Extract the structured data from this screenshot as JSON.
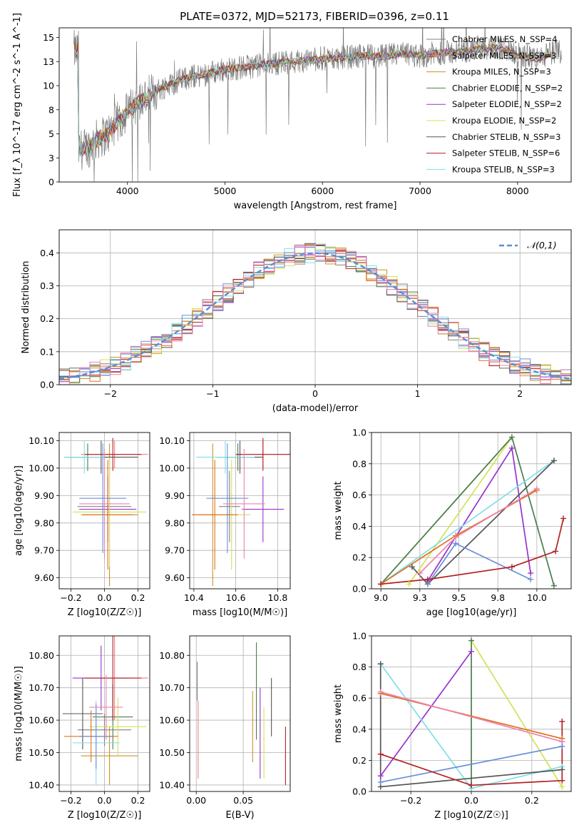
{
  "figure": {
    "title": "PLATE=0372, MJD=52173, FIBERID=0396, z=0.11"
  },
  "colors": [
    "#808080",
    "#f08080",
    "#c8961e",
    "#4a7c4e",
    "#9932cc",
    "#d4e157",
    "#555555",
    "#b22222",
    "#80deea",
    "#e07020",
    "#6a8fd8",
    "#ee82b0"
  ],
  "models": [
    {
      "legend": "Chabrier MILES, N_SSP=4",
      "color": "#808080"
    },
    {
      "legend": "Salpeter MILES, N_SSP=3",
      "color": "#f08080"
    },
    {
      "legend": "Kroupa MILES, N_SSP=3",
      "color": "#c8961e"
    },
    {
      "legend": "Chabrier ELODIE, N_SSP=2",
      "color": "#4a7c4e"
    },
    {
      "legend": "Salpeter ELODIE, N_SSP=2",
      "color": "#9932cc"
    },
    {
      "legend": "Kroupa ELODIE, N_SSP=2",
      "color": "#d4e157"
    },
    {
      "legend": "Chabrier STELIB, N_SSP=3",
      "color": "#555555"
    },
    {
      "legend": "Salpeter STELIB, N_SSP=6",
      "color": "#b22222"
    },
    {
      "legend": "Kroupa STELIB, N_SSP=3",
      "color": "#80deea"
    }
  ],
  "chart_data": [
    {
      "type": "line",
      "id": "spectrum",
      "xlabel": "wavelength [Angstrom, rest frame]",
      "ylabel": "Flux [f_λ 10^-17 erg cm^-2 s^-1 A^-1]",
      "xlim": [
        3300,
        8550
      ],
      "ylim": [
        0,
        16
      ],
      "xticks": [
        4000,
        5000,
        6000,
        7000,
        8000
      ],
      "yticks": [
        0.0,
        2.5,
        5.0,
        7.5,
        10.0,
        12.5,
        15.0
      ],
      "grid": false,
      "legend_position": "right",
      "continuum": {
        "x": [
          3500,
          3600,
          3700,
          3800,
          3900,
          4000,
          4100,
          4200,
          4300,
          4400,
          4500,
          4600,
          4800,
          5000,
          5200,
          5400,
          5600,
          5800,
          6000,
          6200,
          6400,
          6600,
          6800,
          7000,
          7200,
          7400,
          7600,
          7800,
          8000,
          8200,
          8400
        ],
        "y": [
          3.3,
          3.6,
          4.5,
          5.0,
          6.2,
          7.3,
          8.2,
          8.8,
          9.5,
          10.0,
          10.4,
          10.8,
          11.2,
          11.7,
          11.9,
          12.2,
          12.4,
          12.6,
          12.8,
          12.9,
          13.1,
          13.0,
          13.3,
          13.1,
          13.4,
          13.5,
          13.8,
          14.0,
          13.2,
          12.8,
          13.6
        ]
      }
    },
    {
      "type": "line",
      "id": "residuals",
      "xlabel": "(data-model)/error",
      "ylabel": "Normed distribution",
      "xlim": [
        -2.5,
        2.5
      ],
      "ylim": [
        0,
        0.47
      ],
      "xticks": [
        -2,
        -1,
        0,
        1,
        2
      ],
      "yticks": [
        0.0,
        0.1,
        0.2,
        0.3,
        0.4
      ],
      "grid": true,
      "legend_position": "top-right",
      "legend": "𝒩(0,1)",
      "series": [
        {
          "name": "𝒩(0,1)",
          "mu": 0,
          "sigma": 1,
          "style": "dashed"
        }
      ]
    },
    {
      "type": "scatter",
      "id": "z_age",
      "xlabel": "Z [log10(Z/Z☉)]",
      "ylabel": "age  [log10(age/yr)]",
      "xlim": [
        -0.27,
        0.27
      ],
      "ylim": [
        9.56,
        10.13
      ],
      "xticks": [
        -0.2,
        0.0,
        0.2
      ],
      "yticks": [
        9.6,
        9.7,
        9.8,
        9.9,
        10.0,
        10.1
      ],
      "grid": true,
      "points": [
        {
          "x": 0.0,
          "y": 9.86,
          "xerr": 0.16,
          "yerr": 0.13
        },
        {
          "x": 0.06,
          "y": 10.05,
          "xerr": 0.2,
          "yerr": 0.05
        },
        {
          "x": 0.03,
          "y": 9.83,
          "xerr": 0.17,
          "yerr": 0.26
        },
        {
          "x": -0.1,
          "y": 10.04,
          "xerr": 0.12,
          "yerr": 0.05
        },
        {
          "x": 0.02,
          "y": 9.85,
          "xerr": 0.17,
          "yerr": 0.12
        },
        {
          "x": 0.03,
          "y": 9.84,
          "xerr": 0.22,
          "yerr": 0.2
        },
        {
          "x": -0.02,
          "y": 10.04,
          "xerr": 0.22,
          "yerr": 0.06
        },
        {
          "x": 0.05,
          "y": 10.05,
          "xerr": 0.17,
          "yerr": 0.06
        },
        {
          "x": -0.12,
          "y": 10.04,
          "xerr": 0.12,
          "yerr": 0.06
        },
        {
          "x": 0.02,
          "y": 9.83,
          "xerr": 0.15,
          "yerr": 0.2
        },
        {
          "x": -0.01,
          "y": 9.89,
          "xerr": 0.14,
          "yerr": 0.2
        },
        {
          "x": 0.0,
          "y": 9.87,
          "xerr": 0.15,
          "yerr": 0.2
        }
      ]
    },
    {
      "type": "scatter",
      "id": "mass_age",
      "xlabel": "mass [log10(M/M☉)]",
      "ylabel": "",
      "xlim": [
        10.38,
        10.86
      ],
      "ylim": [
        9.56,
        10.13
      ],
      "xticks": [
        10.4,
        10.6,
        10.8
      ],
      "yticks": [
        9.6,
        9.7,
        9.8,
        9.9,
        10.0,
        10.1
      ],
      "grid": true,
      "points": [
        {
          "x": 10.57,
          "y": 9.86,
          "xerr": 0.05,
          "yerr": 0.13
        },
        {
          "x": 10.73,
          "y": 10.05,
          "xerr": 0.13,
          "yerr": 0.05
        },
        {
          "x": 10.49,
          "y": 9.83,
          "xerr": 0.09,
          "yerr": 0.26
        },
        {
          "x": 10.61,
          "y": 10.04,
          "xerr": 0.1,
          "yerr": 0.05
        },
        {
          "x": 10.73,
          "y": 9.85,
          "xerr": 0.1,
          "yerr": 0.12
        },
        {
          "x": 10.58,
          "y": 9.83,
          "xerr": 0.09,
          "yerr": 0.2
        },
        {
          "x": 10.62,
          "y": 10.04,
          "xerr": 0.11,
          "yerr": 0.06
        },
        {
          "x": 10.73,
          "y": 10.05,
          "xerr": 0.13,
          "yerr": 0.06
        },
        {
          "x": 10.55,
          "y": 10.04,
          "xerr": 0.14,
          "yerr": 0.06
        },
        {
          "x": 10.5,
          "y": 9.83,
          "xerr": 0.11,
          "yerr": 0.2
        },
        {
          "x": 10.56,
          "y": 9.89,
          "xerr": 0.1,
          "yerr": 0.2
        },
        {
          "x": 10.64,
          "y": 9.87,
          "xerr": 0.1,
          "yerr": 0.2
        }
      ]
    },
    {
      "type": "line",
      "id": "age_weight",
      "xlabel": "age  [log10(age/yr)]",
      "ylabel": "mass weight",
      "xlim": [
        8.94,
        10.22
      ],
      "ylim": [
        0,
        1.0
      ],
      "xticks": [
        9.0,
        9.25,
        9.5,
        9.75,
        10.0
      ],
      "yticks": [
        0.0,
        0.2,
        0.4,
        0.6,
        0.8,
        1.0
      ],
      "grid": true,
      "series": [
        {
          "color": "#d4e157",
          "points": [
            [
              9.18,
              0.03
            ],
            [
              9.84,
              0.97
            ],
            [
              9.0,
              0.03
            ]
          ]
        },
        {
          "color": "#9932cc",
          "points": [
            [
              9.3,
              0.05
            ],
            [
              9.84,
              0.9
            ],
            [
              9.96,
              0.1
            ]
          ]
        },
        {
          "color": "#4a7c4e",
          "points": [
            [
              9.0,
              0.03
            ],
            [
              9.84,
              0.97
            ],
            [
              10.11,
              0.02
            ]
          ]
        },
        {
          "color": "#80deea",
          "points": [
            [
              9.0,
              0.03
            ],
            [
              10.11,
              0.82
            ]
          ]
        },
        {
          "color": "#555555",
          "points": [
            [
              9.3,
              0.03
            ],
            [
              10.11,
              0.82
            ]
          ]
        },
        {
          "color": "#555555",
          "points": [
            [
              9.3,
              0.03
            ],
            [
              9.2,
              0.14
            ]
          ]
        },
        {
          "color": "#e07020",
          "points": [
            [
              9.0,
              0.03
            ],
            [
              9.48,
              0.34
            ],
            [
              10.0,
              0.63
            ]
          ]
        },
        {
          "color": "#ee82b0",
          "points": [
            [
              9.25,
              0.1
            ],
            [
              9.48,
              0.33
            ],
            [
              10.0,
              0.64
            ]
          ]
        },
        {
          "color": "#6a8fd8",
          "points": [
            [
              9.3,
              0.03
            ],
            [
              9.48,
              0.29
            ],
            [
              9.96,
              0.06
            ]
          ]
        },
        {
          "color": "#b22222",
          "points": [
            [
              9.0,
              0.03
            ],
            [
              9.3,
              0.06
            ],
            [
              9.84,
              0.14
            ],
            [
              10.12,
              0.24
            ],
            [
              10.17,
              0.45
            ]
          ]
        }
      ]
    },
    {
      "type": "scatter",
      "id": "z_mass",
      "xlabel": "Z [log10(Z/Z☉)]",
      "ylabel": "mass [log10(M/M☉)]",
      "xlim": [
        -0.27,
        0.27
      ],
      "ylim": [
        10.38,
        10.86
      ],
      "xticks": [
        -0.2,
        0.0,
        0.2
      ],
      "yticks": [
        10.4,
        10.5,
        10.6,
        10.7,
        10.8
      ],
      "grid": true,
      "points": [
        {
          "x": 0.0,
          "y": 10.57,
          "xerr": 0.16,
          "yerr": 0.05
        },
        {
          "x": 0.06,
          "y": 10.73,
          "xerr": 0.2,
          "yerr": 0.13
        },
        {
          "x": 0.03,
          "y": 10.49,
          "xerr": 0.17,
          "yerr": 0.09
        },
        {
          "x": 0.05,
          "y": 10.61,
          "xerr": 0.12,
          "yerr": 0.1
        },
        {
          "x": -0.02,
          "y": 10.73,
          "xerr": 0.17,
          "yerr": 0.1
        },
        {
          "x": 0.08,
          "y": 10.58,
          "xerr": 0.17,
          "yerr": 0.09
        },
        {
          "x": -0.13,
          "y": 10.62,
          "xerr": 0.12,
          "yerr": 0.11
        },
        {
          "x": 0.05,
          "y": 10.73,
          "xerr": 0.17,
          "yerr": 0.13
        },
        {
          "x": -0.05,
          "y": 10.53,
          "xerr": 0.14,
          "yerr": 0.13
        },
        {
          "x": -0.08,
          "y": 10.55,
          "xerr": 0.16,
          "yerr": 0.08
        },
        {
          "x": -0.05,
          "y": 10.55,
          "xerr": 0.1,
          "yerr": 0.1
        },
        {
          "x": 0.01,
          "y": 10.64,
          "xerr": 0.1,
          "yerr": 0.1
        }
      ]
    },
    {
      "type": "scatter",
      "id": "ebv_mass",
      "xlabel": "E(B-V)",
      "ylabel": "",
      "xlim": [
        -0.007,
        0.1
      ],
      "ylim": [
        10.38,
        10.86
      ],
      "xticks": [
        0.0,
        0.05
      ],
      "yticks": [
        10.4,
        10.5,
        10.6,
        10.7,
        10.8
      ],
      "grid": true,
      "points": [
        {
          "x": 0.001,
          "y": 10.72,
          "xerr": 0.0,
          "yerr": 0.06
        },
        {
          "x": 0.002,
          "y": 10.54,
          "xerr": 0.0,
          "yerr": 0.12
        },
        {
          "x": 0.06,
          "y": 10.58,
          "xerr": 0.0,
          "yerr": 0.11
        },
        {
          "x": 0.064,
          "y": 10.69,
          "xerr": 0.0,
          "yerr": 0.15
        },
        {
          "x": 0.068,
          "y": 10.56,
          "xerr": 0.0,
          "yerr": 0.14
        },
        {
          "x": 0.072,
          "y": 10.53,
          "xerr": 0.0,
          "yerr": 0.11
        },
        {
          "x": 0.08,
          "y": 10.64,
          "xerr": 0.0,
          "yerr": 0.09
        },
        {
          "x": 0.095,
          "y": 10.49,
          "xerr": 0.0,
          "yerr": 0.09
        }
      ]
    },
    {
      "type": "line",
      "id": "z_weight",
      "xlabel": "Z [log10(Z/Z☉)]",
      "ylabel": "mass weight",
      "xlim": [
        -0.33,
        0.33
      ],
      "ylim": [
        0,
        1.0
      ],
      "xticks": [
        -0.2,
        0.0,
        0.2
      ],
      "yticks": [
        0.0,
        0.2,
        0.4,
        0.6,
        0.8,
        1.0
      ],
      "grid": true,
      "series": [
        {
          "color": "#d4e157",
          "points": [
            [
              0.3,
              0.03
            ],
            [
              0.0,
              0.97
            ]
          ]
        },
        {
          "color": "#9932cc",
          "points": [
            [
              -0.3,
              0.1
            ],
            [
              0.0,
              0.9
            ]
          ]
        },
        {
          "color": "#4a7c4e",
          "points": [
            [
              0.0,
              0.97
            ],
            [
              0.0,
              0.02
            ]
          ]
        },
        {
          "color": "#80deea",
          "points": [
            [
              -0.3,
              0.82
            ],
            [
              0.0,
              0.02
            ],
            [
              0.3,
              0.16
            ]
          ]
        },
        {
          "color": "#555555",
          "points": [
            [
              -0.3,
              0.82
            ],
            [
              -0.3,
              0.03
            ],
            [
              0.3,
              0.14
            ]
          ]
        },
        {
          "color": "#e07020",
          "points": [
            [
              -0.3,
              0.63
            ],
            [
              0.3,
              0.34
            ]
          ]
        },
        {
          "color": "#ee82b0",
          "points": [
            [
              -0.3,
              0.64
            ],
            [
              0.3,
              0.32
            ]
          ]
        },
        {
          "color": "#6a8fd8",
          "points": [
            [
              -0.3,
              0.06
            ],
            [
              0.3,
              0.29
            ]
          ]
        },
        {
          "color": "#b22222",
          "points": [
            [
              -0.3,
              0.24
            ],
            [
              0.0,
              0.04
            ],
            [
              0.3,
              0.07
            ],
            [
              0.3,
              0.45
            ]
          ]
        }
      ]
    }
  ]
}
